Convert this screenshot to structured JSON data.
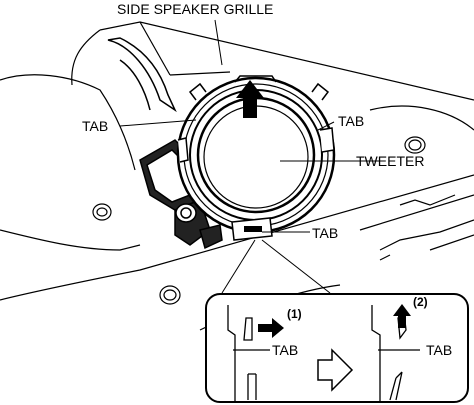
{
  "labels": {
    "grille": "SIDE SPEAKER GRILLE",
    "tab_left": "TAB",
    "tab_right": "TAB",
    "tweeter": "TWEETER",
    "tab_bottom": "TAB"
  },
  "detail": {
    "step1_num": "(1)",
    "step1_tab": "TAB",
    "step2_num": "(2)",
    "step2_tab": "TAB"
  }
}
